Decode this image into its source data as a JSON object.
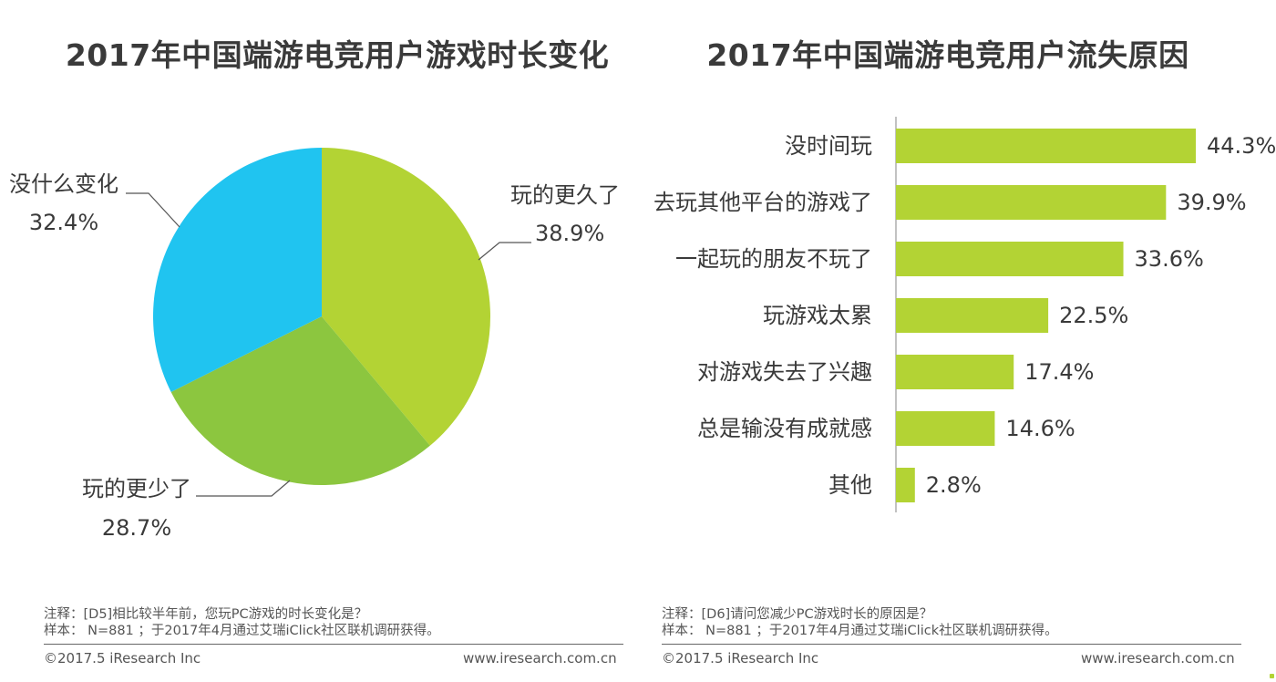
{
  "chart_data": [
    {
      "type": "pie",
      "title": "2017年中国端游电竞用户游戏时长变化",
      "slices": [
        {
          "label": "玩的更久了",
          "value": 38.9,
          "display": "38.9%",
          "color": "#b3d334"
        },
        {
          "label": "玩的更少了",
          "value": 28.7,
          "display": "28.7%",
          "color": "#8cc63f"
        },
        {
          "label": "没什么变化",
          "value": 32.4,
          "display": "32.4%",
          "color": "#20c4f0"
        }
      ],
      "start_angle_deg": 0,
      "direction": "clockwise"
    },
    {
      "type": "bar",
      "orientation": "horizontal",
      "title": "2017年中国端游电竞用户流失原因",
      "categories": [
        "没时间玩",
        "去玩其他平台的游戏了",
        "一起玩的朋友不玩了",
        "玩游戏太累",
        "对游戏失去了兴趣",
        "总是输没有成就感",
        "其他"
      ],
      "values": [
        44.3,
        39.9,
        33.6,
        22.5,
        17.4,
        14.6,
        2.8
      ],
      "labels": [
        "44.3%",
        "39.9%",
        "33.6%",
        "22.5%",
        "17.4%",
        "14.6%",
        "2.8%"
      ],
      "xlim": [
        0,
        50
      ],
      "color": "#b3d334"
    }
  ],
  "footer": {
    "left": {
      "note": "注释：[D5]相比较半年前，您玩PC游戏的时长变化是？",
      "sample": "样本： N=881 ；于2017年4月通过艾瑞iClick社区联机调研获得。",
      "copyright": "©2017.5 iResearch Inc",
      "url": "www.iresearch.com.cn"
    },
    "right": {
      "note": "注释：[D6]请问您减少PC游戏时长的原因是？",
      "sample": "样本： N=881 ；于2017年4月通过艾瑞iClick社区联机调研获得。",
      "copyright": "©2017.5 iResearch Inc",
      "url": "www.iresearch.com.cn"
    }
  }
}
